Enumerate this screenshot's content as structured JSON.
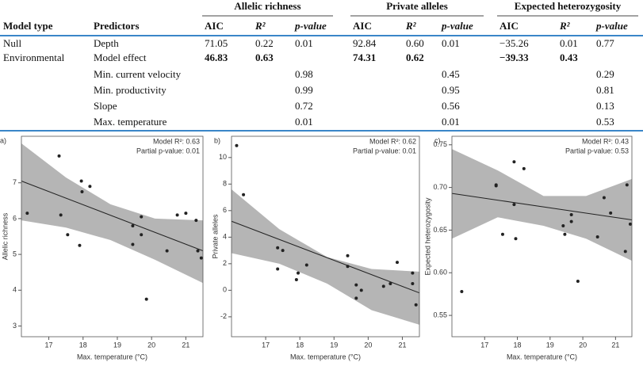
{
  "table": {
    "groups": [
      "Allelic richness",
      "Private alleles",
      "Expected heterozygosity"
    ],
    "columns": [
      "Model type",
      "Predictors",
      "AIC",
      "R²",
      "p-value",
      "AIC",
      "R²",
      "p-value",
      "AIC",
      "R²",
      "p-value"
    ],
    "rows": [
      {
        "cells": [
          "Null",
          "Depth",
          "71.05",
          "0.22",
          "0.01",
          "92.84",
          "0.60",
          "0.01",
          "−35.26",
          "0.01",
          "0.77"
        ],
        "emphasis": false
      },
      {
        "cells": [
          "Environmental",
          "Model effect",
          "46.83",
          "0.63",
          null,
          "74.31",
          "0.62",
          null,
          "−39.33",
          "0.43",
          null
        ],
        "emphasis": true
      },
      {
        "cells": [
          null,
          "Min. current velocity",
          null,
          null,
          "0.98",
          null,
          null,
          "0.45",
          null,
          null,
          "0.29"
        ],
        "emphasis": false
      },
      {
        "cells": [
          null,
          "Min. productivity",
          null,
          null,
          "0.99",
          null,
          null,
          "0.95",
          null,
          null,
          "0.81"
        ],
        "emphasis": false
      },
      {
        "cells": [
          null,
          "Slope",
          null,
          null,
          "0.72",
          null,
          null,
          "0.56",
          null,
          null,
          "0.13"
        ],
        "emphasis": false
      },
      {
        "cells": [
          null,
          "Max. temperature",
          null,
          null,
          "0.01",
          null,
          null,
          "0.01",
          null,
          null,
          "0.53"
        ],
        "emphasis": false
      }
    ],
    "rule_color": "#3a86c8"
  },
  "chart_data": [
    {
      "type": "scatter",
      "panel": "a)",
      "x_label": "Max. temperature (°C)",
      "y_label": "Allelic richness",
      "annotations": [
        "Model R²: 0.63",
        "Partial p-value: 0.01"
      ],
      "x": [
        16.37,
        17.3,
        17.35,
        17.55,
        17.9,
        17.95,
        17.97,
        18.2,
        19.45,
        19.45,
        19.7,
        19.7,
        19.85,
        20.45,
        20.75,
        21.0,
        21.3,
        21.35,
        21.45
      ],
      "values": [
        6.15,
        7.75,
        6.1,
        5.55,
        5.25,
        7.05,
        6.75,
        6.9,
        5.8,
        5.28,
        6.05,
        5.55,
        3.75,
        5.1,
        6.1,
        6.15,
        5.95,
        5.1,
        4.9
      ],
      "fit": {
        "x": [
          16.2,
          21.5
        ],
        "y": [
          7.05,
          5.1
        ]
      },
      "band": {
        "x": [
          16.2,
          17.5,
          18.8,
          20.1,
          21.5
        ],
        "upper": [
          8.1,
          7.15,
          6.4,
          6.0,
          5.95
        ],
        "lower": [
          5.95,
          5.75,
          5.4,
          4.85,
          4.2
        ]
      },
      "color": "#222222",
      "band_color": "#b5b5b5",
      "xlim": [
        16.2,
        21.5
      ],
      "ylim": [
        2.7,
        8.3
      ],
      "xticks": [
        17,
        18,
        19,
        20,
        21
      ],
      "yticks": [
        3,
        4,
        5,
        6,
        7
      ]
    },
    {
      "type": "scatter",
      "panel": "b)",
      "x_label": "Max. temperature (°C)",
      "y_label": "Private alleles",
      "annotations": [
        "Model R²: 0.62",
        "Partial p-value: 0.01"
      ],
      "x": [
        16.15,
        16.35,
        17.35,
        17.35,
        17.5,
        17.9,
        17.95,
        18.2,
        19.4,
        19.4,
        19.65,
        19.65,
        19.8,
        20.45,
        20.65,
        20.85,
        21.3,
        21.3,
        21.4
      ],
      "values": [
        10.9,
        7.2,
        1.6,
        3.2,
        3.0,
        0.8,
        1.3,
        1.9,
        2.6,
        1.8,
        0.4,
        -0.6,
        0,
        0.3,
        0.5,
        2.1,
        1.3,
        0.5,
        -1.1
      ],
      "fit": {
        "x": [
          16.0,
          21.5
        ],
        "y": [
          5.2,
          -0.2
        ]
      },
      "band": {
        "x": [
          16.0,
          17.4,
          18.8,
          20.1,
          21.5
        ],
        "upper": [
          7.6,
          4.6,
          2.5,
          1.6,
          1.4
        ],
        "lower": [
          2.8,
          2.0,
          0.5,
          -1.5,
          -2.6
        ]
      },
      "color": "#222222",
      "band_color": "#b5b5b5",
      "xlim": [
        16.0,
        21.5
      ],
      "ylim": [
        -3.5,
        11.6
      ],
      "xticks": [
        17,
        18,
        19,
        20,
        21
      ],
      "yticks": [
        -2,
        0,
        2,
        4,
        6,
        8,
        10
      ]
    },
    {
      "type": "scatter",
      "panel": "c)",
      "x_label": "Max. temperature (°C)",
      "y_label": "Expected heterozygosity",
      "annotations": [
        "Model R²: 0.43",
        "Partial p-value: 0.53"
      ],
      "x": [
        16.3,
        17.35,
        17.35,
        17.55,
        17.9,
        17.9,
        17.95,
        18.2,
        19.4,
        19.45,
        19.65,
        19.65,
        19.85,
        20.45,
        20.65,
        20.85,
        21.3,
        21.35,
        21.45
      ],
      "values": [
        0.578,
        0.703,
        0.702,
        0.645,
        0.73,
        0.68,
        0.64,
        0.722,
        0.655,
        0.645,
        0.66,
        0.668,
        0.59,
        0.642,
        0.688,
        0.67,
        0.625,
        0.703,
        0.657
      ],
      "fit": {
        "x": [
          16.0,
          21.5
        ],
        "y": [
          0.693,
          0.662
        ]
      },
      "band": {
        "x": [
          16.0,
          17.4,
          18.8,
          20.1,
          21.5
        ],
        "upper": [
          0.745,
          0.72,
          0.69,
          0.69,
          0.71
        ],
        "lower": [
          0.64,
          0.665,
          0.655,
          0.64,
          0.614
        ]
      },
      "color": "#222222",
      "band_color": "#b5b5b5",
      "xlim": [
        16.0,
        21.5
      ],
      "ylim": [
        0.525,
        0.76
      ],
      "xticks": [
        17,
        18,
        19,
        20,
        21
      ],
      "yticks": [
        0.55,
        {
          "value": 0.6,
          "label": "0.60"
        },
        0.65,
        {
          "value": 0.7,
          "label": "0.70"
        },
        0.75
      ]
    }
  ]
}
